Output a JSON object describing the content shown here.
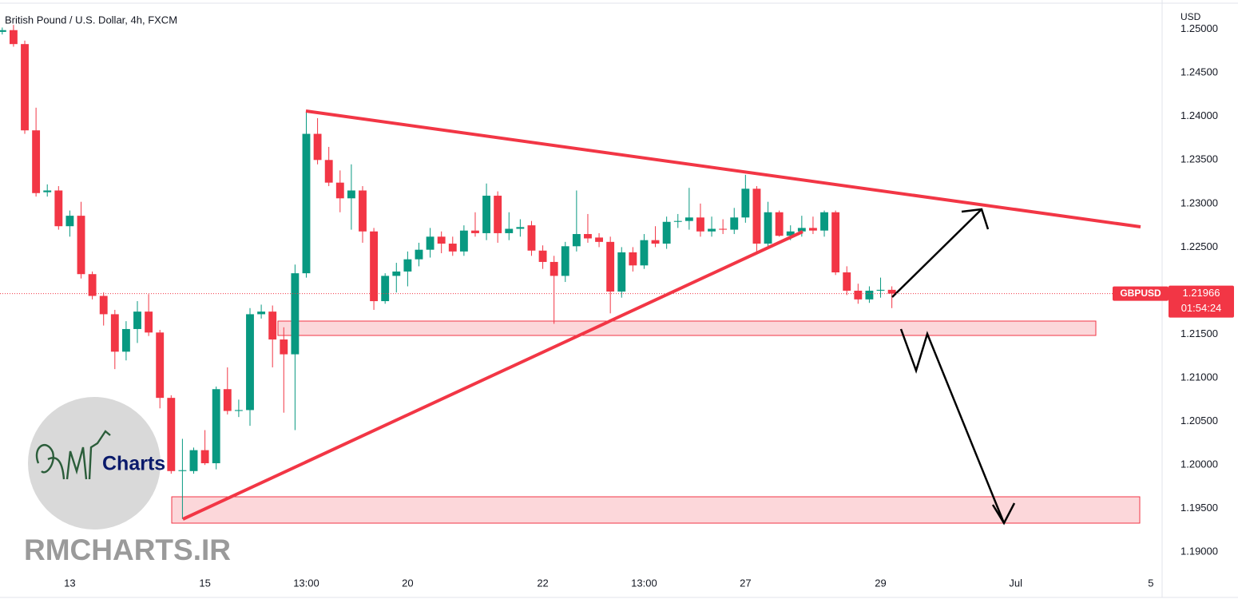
{
  "chart_data": {
    "type": "candlestick",
    "title": "British Pound / U.S. Dollar, 4h, FXCM",
    "y_axis_unit": "USD",
    "symbol": "GBPUSD",
    "countdown": "01:54:24",
    "up_color": "#089981",
    "down_color": "#f23645",
    "ylim": [
      1.1848,
      1.2529
    ],
    "yticks": [
      {
        "value": 1.19,
        "label": "1.19000"
      },
      {
        "value": 1.195,
        "label": "1.19500"
      },
      {
        "value": 1.2,
        "label": "1.20000"
      },
      {
        "value": 1.205,
        "label": "1.20500"
      },
      {
        "value": 1.21,
        "label": "1.21000"
      },
      {
        "value": 1.215,
        "label": "1.21500"
      },
      {
        "value": 1.22,
        "label": "1.22000"
      },
      {
        "value": 1.225,
        "label": "1.22500"
      },
      {
        "value": 1.23,
        "label": "1.23000"
      },
      {
        "value": 1.235,
        "label": "1.23500"
      },
      {
        "value": 1.24,
        "label": "1.24000"
      },
      {
        "value": 1.245,
        "label": "1.24500"
      },
      {
        "value": 1.25,
        "label": "1.25000"
      }
    ],
    "xlim": [
      -0.2,
      103
    ],
    "xticks": [
      {
        "value": 6,
        "label": "13"
      },
      {
        "value": 18,
        "label": "15"
      },
      {
        "value": 27,
        "label": "13:00"
      },
      {
        "value": 36,
        "label": "20"
      },
      {
        "value": 48,
        "label": "22"
      },
      {
        "value": 57,
        "label": "13:00"
      },
      {
        "value": 66,
        "label": "27"
      },
      {
        "value": 78,
        "label": "29"
      },
      {
        "value": 90,
        "label": "Jul"
      },
      {
        "value": 102,
        "label": "5"
      }
    ],
    "open": [
      1.2497,
      1.2499,
      1.2483,
      1.2384,
      1.2313,
      1.2315,
      1.2274,
      1.2286,
      1.2219,
      1.2194,
      1.2173,
      1.213,
      1.2156,
      1.2176,
      1.2152,
      1.2077,
      1.1993,
      1.1993,
      1.2017,
      1.2002,
      1.2087,
      1.2062,
      1.2063,
      1.2173,
      1.2176,
      1.2144,
      1.2127,
      1.222,
      1.238,
      1.235,
      1.2324,
      1.2306,
      1.2315,
      1.2268,
      1.2188,
      1.2217,
      1.2222,
      1.2236,
      1.2247,
      1.2262,
      1.2254,
      1.2245,
      1.2269,
      1.2266,
      1.2309,
      1.2266,
      1.2271,
      1.2275,
      1.2246,
      1.2233,
      1.2217,
      1.2251,
      1.2265,
      1.2261,
      1.2256,
      1.2199,
      1.2244,
      1.2229,
      1.2258,
      1.2254,
      1.2279,
      1.228,
      1.2284,
      1.2268,
      1.2271,
      1.227,
      1.2284,
      1.2317,
      1.2254,
      1.229,
      1.2263,
      1.2268,
      1.2272,
      1.2269,
      1.229,
      1.2221,
      1.22,
      1.219,
      1.22,
      1.2201
    ],
    "high": [
      1.2502,
      1.2505,
      1.2487,
      1.241,
      1.2322,
      1.232,
      1.2292,
      1.2302,
      1.2222,
      1.2198,
      1.2178,
      1.2165,
      1.2188,
      1.2196,
      1.2155,
      1.208,
      1.203,
      1.202,
      1.204,
      1.209,
      1.2112,
      1.2075,
      1.218,
      1.2184,
      1.2183,
      1.2158,
      1.223,
      1.2405,
      1.2398,
      1.2365,
      1.2338,
      1.2345,
      1.232,
      1.2272,
      1.222,
      1.2232,
      1.2245,
      1.2255,
      1.2272,
      1.2268,
      1.2262,
      1.2275,
      1.229,
      1.2323,
      1.2314,
      1.229,
      1.2282,
      1.228,
      1.2252,
      1.224,
      1.2256,
      1.2315,
      1.2288,
      1.2266,
      1.2262,
      1.225,
      1.225,
      1.2265,
      1.2274,
      1.2285,
      1.2288,
      1.2318,
      1.23,
      1.2285,
      1.2282,
      1.2295,
      1.2333,
      1.232,
      1.2302,
      1.2292,
      1.2275,
      1.2286,
      1.2285,
      1.2292,
      1.2292,
      1.2228,
      1.2208,
      1.2205,
      1.2215,
      1.2205
    ],
    "low": [
      1.2494,
      1.248,
      1.238,
      1.2308,
      1.2308,
      1.227,
      1.2262,
      1.2214,
      1.219,
      1.216,
      1.211,
      1.212,
      1.214,
      1.2148,
      1.2065,
      1.199,
      1.1938,
      1.199,
      1.2,
      1.1995,
      1.2058,
      1.2055,
      1.2045,
      1.2168,
      1.2112,
      1.206,
      1.204,
      1.2215,
      1.2345,
      1.232,
      1.229,
      1.227,
      1.2255,
      1.2178,
      1.2185,
      1.2198,
      1.2205,
      1.2228,
      1.2238,
      1.2243,
      1.224,
      1.224,
      1.2262,
      1.2258,
      1.2255,
      1.2258,
      1.2262,
      1.224,
      1.2225,
      1.2162,
      1.221,
      1.2245,
      1.2255,
      1.225,
      1.2174,
      1.2192,
      1.2222,
      1.2225,
      1.225,
      1.2248,
      1.2272,
      1.227,
      1.2262,
      1.2262,
      1.2265,
      1.2265,
      1.2278,
      1.2243,
      1.225,
      1.2262,
      1.2258,
      1.2262,
      1.2265,
      1.2262,
      1.2218,
      1.2195,
      1.2185,
      1.2186,
      1.2192,
      1.218
    ],
    "close": [
      1.2499,
      1.2483,
      1.2384,
      1.2312,
      1.2315,
      1.2274,
      1.2286,
      1.2219,
      1.2194,
      1.2173,
      1.213,
      1.2156,
      1.2176,
      1.2152,
      1.2077,
      1.1993,
      1.1994,
      1.2017,
      1.2002,
      1.2087,
      1.2062,
      1.2063,
      1.2173,
      1.2176,
      1.2144,
      1.2127,
      1.222,
      1.238,
      1.235,
      1.2324,
      1.2306,
      1.2315,
      1.2268,
      1.2188,
      1.2217,
      1.2222,
      1.2236,
      1.2247,
      1.2262,
      1.2254,
      1.2245,
      1.2269,
      1.2266,
      1.2309,
      1.2266,
      1.2271,
      1.2273,
      1.2246,
      1.2233,
      1.2217,
      1.2251,
      1.2265,
      1.226,
      1.2256,
      1.2199,
      1.2244,
      1.2229,
      1.2258,
      1.2254,
      1.2279,
      1.228,
      1.2284,
      1.2268,
      1.2271,
      1.227,
      1.2284,
      1.2317,
      1.2254,
      1.229,
      1.2263,
      1.2268,
      1.2272,
      1.2269,
      1.229,
      1.2221,
      1.22,
      1.219,
      1.22,
      1.2201,
      1.21966
    ],
    "watermark": "RMCHARTS.IR",
    "logo_text": "Charts"
  }
}
